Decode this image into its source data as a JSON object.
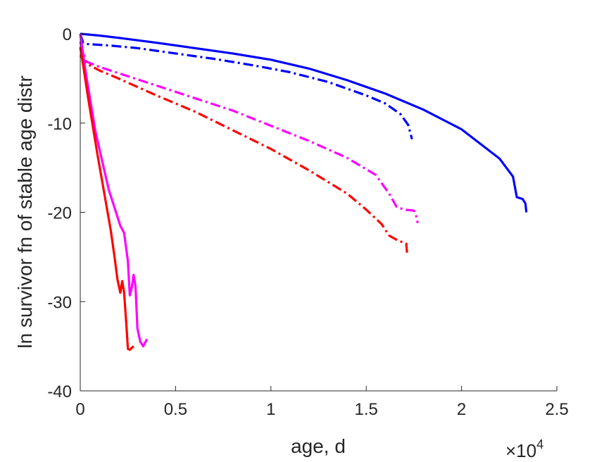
{
  "chart_data": {
    "type": "line",
    "title": "",
    "xlabel": "age, d",
    "ylabel": "ln survivor fn of stable age distr",
    "x_multiplier": "×10",
    "x_multiplier_exponent": "4",
    "xlim": [
      0,
      25000
    ],
    "ylim": [
      -40,
      0
    ],
    "x_ticks": [
      0,
      5000,
      10000,
      15000,
      20000,
      25000
    ],
    "x_tick_labels": [
      "0",
      "0.5",
      "1",
      "1.5",
      "2",
      "2.5"
    ],
    "y_ticks": [
      0,
      -10,
      -20,
      -30,
      -40
    ],
    "y_tick_labels": [
      "0",
      "-10",
      "-20",
      "-30",
      "-40"
    ],
    "grid": false,
    "legend": "none",
    "series": [
      {
        "color": "#0000ff",
        "style": "solid",
        "x": [
          0,
          1000,
          2000,
          4000,
          6000,
          8000,
          10000,
          12000,
          14000,
          16000,
          18000,
          20000,
          22000,
          22700,
          22900,
          23200,
          23350,
          23400
        ],
        "y": [
          0,
          -0.2,
          -0.45,
          -1.0,
          -1.6,
          -2.2,
          -2.9,
          -3.9,
          -5.2,
          -6.7,
          -8.5,
          -10.7,
          -14.0,
          -16.0,
          -18.3,
          -18.5,
          -19.0,
          -20.0
        ]
      },
      {
        "color": "#0000ff",
        "style": "dashdot",
        "x": [
          0,
          150,
          400,
          1500,
          3000,
          5000,
          7000,
          9000,
          11000,
          13000,
          15000,
          16000,
          16800,
          17200,
          17400
        ],
        "y": [
          0,
          -1.0,
          -1.15,
          -1.3,
          -1.6,
          -2.2,
          -2.8,
          -3.5,
          -4.3,
          -5.4,
          -6.9,
          -7.8,
          -9.0,
          -10.2,
          -11.8
        ]
      },
      {
        "color": "#ff00ff",
        "style": "dashdot",
        "x": [
          0,
          300,
          1000,
          2000,
          4000,
          6000,
          8000,
          10000,
          12000,
          14000,
          15500,
          16200,
          16600,
          17000,
          17500,
          17600,
          17700
        ],
        "y": [
          -0.9,
          -3.1,
          -3.7,
          -4.4,
          -5.8,
          -7.2,
          -8.6,
          -10.3,
          -12.0,
          -13.9,
          -15.8,
          -17.9,
          -19.4,
          -19.7,
          -19.8,
          -20.2,
          -21.2
        ]
      },
      {
        "color": "#ff0000",
        "style": "dashdot",
        "x": [
          0,
          300,
          1000,
          2000,
          4000,
          6000,
          8000,
          10000,
          12000,
          14000,
          15000,
          15800,
          16200,
          16700,
          17000,
          17100,
          17150
        ],
        "y": [
          -2.4,
          -3.3,
          -4.1,
          -5.0,
          -6.9,
          -8.7,
          -10.8,
          -12.9,
          -15.3,
          -17.9,
          -19.7,
          -21.3,
          -22.6,
          -23.2,
          -23.4,
          -23.5,
          -24.8
        ]
      },
      {
        "color": "#ff00ff",
        "style": "solid",
        "x": [
          0,
          100,
          300,
          800,
          1500,
          2100,
          2300,
          2500,
          2600,
          2700,
          2800,
          2900,
          3000,
          3150,
          3300,
          3500
        ],
        "y": [
          0,
          -1.5,
          -4.5,
          -11.0,
          -17.5,
          -21.5,
          -22.3,
          -25.5,
          -29.3,
          -28.5,
          -27.0,
          -28.3,
          -33.0,
          -34.5,
          -35.0,
          -34.2
        ]
      },
      {
        "color": "#ff0000",
        "style": "solid",
        "x": [
          0,
          150,
          400,
          900,
          1600,
          1800,
          1950,
          2100,
          2200,
          2300,
          2400,
          2500,
          2600,
          2800
        ],
        "y": [
          -1.5,
          -3.5,
          -7.0,
          -13.5,
          -22.0,
          -25.0,
          -27.5,
          -29.0,
          -27.7,
          -29.0,
          -32.0,
          -35.3,
          -35.4,
          -35.0
        ]
      }
    ]
  }
}
